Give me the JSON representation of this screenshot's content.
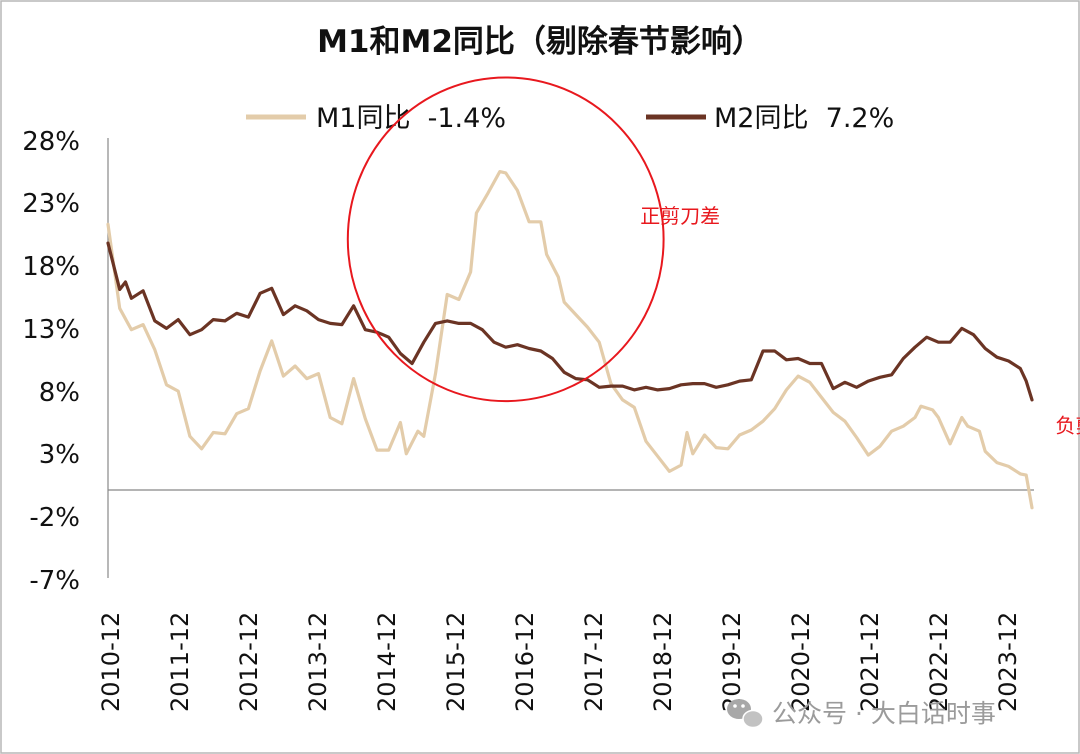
{
  "chart_data": {
    "type": "line",
    "title": "M1和M2同比（剔除春节影响）",
    "x_ticks": [
      "2010-12",
      "2011-12",
      "2012-12",
      "2013-12",
      "2014-12",
      "2015-12",
      "2016-12",
      "2017-12",
      "2018-12",
      "2019-12",
      "2020-12",
      "2021-12",
      "2022-12",
      "2023-12"
    ],
    "y_ticks": [
      "28%",
      "23%",
      "18%",
      "13%",
      "8%",
      "3%",
      "-2%",
      "-7%"
    ],
    "ylim": [
      -7,
      28
    ],
    "xlim": [
      "2010-12",
      "2024-02"
    ],
    "grid": false,
    "legend_position": "top",
    "series": [
      {
        "name": "M1同比",
        "legend_label": "M1同比  -1.4%",
        "color": "#e3ccaa",
        "points": [
          [
            "2010-12",
            21.2
          ],
          [
            "2011-02",
            14.5
          ],
          [
            "2011-04",
            12.8
          ],
          [
            "2011-06",
            13.2
          ],
          [
            "2011-08",
            11.2
          ],
          [
            "2011-10",
            8.4
          ],
          [
            "2011-12",
            7.9
          ],
          [
            "2012-02",
            4.3
          ],
          [
            "2012-04",
            3.3
          ],
          [
            "2012-06",
            4.6
          ],
          [
            "2012-08",
            4.5
          ],
          [
            "2012-10",
            6.1
          ],
          [
            "2012-12",
            6.5
          ],
          [
            "2013-02",
            9.5
          ],
          [
            "2013-04",
            11.9
          ],
          [
            "2013-06",
            9.1
          ],
          [
            "2013-08",
            9.9
          ],
          [
            "2013-10",
            8.9
          ],
          [
            "2013-12",
            9.3
          ],
          [
            "2014-02",
            5.8
          ],
          [
            "2014-04",
            5.3
          ],
          [
            "2014-06",
            8.9
          ],
          [
            "2014-08",
            5.7
          ],
          [
            "2014-10",
            3.2
          ],
          [
            "2014-12",
            3.2
          ],
          [
            "2015-02",
            5.4
          ],
          [
            "2015-03",
            2.9
          ],
          [
            "2015-05",
            4.7
          ],
          [
            "2015-06",
            4.3
          ],
          [
            "2015-08",
            9.3
          ],
          [
            "2015-10",
            15.6
          ],
          [
            "2015-12",
            15.2
          ],
          [
            "2016-02",
            17.4
          ],
          [
            "2016-03",
            22.1
          ],
          [
            "2016-05",
            23.7
          ],
          [
            "2016-07",
            25.4
          ],
          [
            "2016-08",
            25.3
          ],
          [
            "2016-10",
            23.9
          ],
          [
            "2016-12",
            21.4
          ],
          [
            "2017-02",
            21.4
          ],
          [
            "2017-03",
            18.8
          ],
          [
            "2017-05",
            17.0
          ],
          [
            "2017-06",
            15.0
          ],
          [
            "2017-08",
            14.0
          ],
          [
            "2017-10",
            13.0
          ],
          [
            "2017-12",
            11.8
          ],
          [
            "2018-02",
            8.5
          ],
          [
            "2018-04",
            7.2
          ],
          [
            "2018-06",
            6.6
          ],
          [
            "2018-08",
            3.9
          ],
          [
            "2018-10",
            2.7
          ],
          [
            "2018-12",
            1.5
          ],
          [
            "2019-02",
            2.0
          ],
          [
            "2019-03",
            4.6
          ],
          [
            "2019-04",
            2.9
          ],
          [
            "2019-06",
            4.4
          ],
          [
            "2019-08",
            3.4
          ],
          [
            "2019-10",
            3.3
          ],
          [
            "2019-12",
            4.4
          ],
          [
            "2020-02",
            4.8
          ],
          [
            "2020-04",
            5.5
          ],
          [
            "2020-06",
            6.5
          ],
          [
            "2020-08",
            8.0
          ],
          [
            "2020-10",
            9.1
          ],
          [
            "2020-12",
            8.6
          ],
          [
            "2021-02",
            7.4
          ],
          [
            "2021-04",
            6.2
          ],
          [
            "2021-06",
            5.5
          ],
          [
            "2021-08",
            4.2
          ],
          [
            "2021-10",
            2.8
          ],
          [
            "2021-12",
            3.5
          ],
          [
            "2022-02",
            4.7
          ],
          [
            "2022-04",
            5.1
          ],
          [
            "2022-06",
            5.8
          ],
          [
            "2022-07",
            6.7
          ],
          [
            "2022-09",
            6.4
          ],
          [
            "2022-10",
            5.8
          ],
          [
            "2022-12",
            3.7
          ],
          [
            "2023-02",
            5.8
          ],
          [
            "2023-03",
            5.1
          ],
          [
            "2023-05",
            4.7
          ],
          [
            "2023-06",
            3.1
          ],
          [
            "2023-08",
            2.2
          ],
          [
            "2023-10",
            1.9
          ],
          [
            "2023-12",
            1.3
          ],
          [
            "2024-01",
            1.2
          ],
          [
            "2024-02",
            -1.4
          ]
        ]
      },
      {
        "name": "M2同比",
        "legend_label": "M2同比  7.2%",
        "color": "#6b3424",
        "points": [
          [
            "2010-12",
            19.7
          ],
          [
            "2011-02",
            16.0
          ],
          [
            "2011-03",
            16.6
          ],
          [
            "2011-04",
            15.3
          ],
          [
            "2011-06",
            15.9
          ],
          [
            "2011-08",
            13.5
          ],
          [
            "2011-10",
            12.9
          ],
          [
            "2011-12",
            13.6
          ],
          [
            "2012-02",
            12.4
          ],
          [
            "2012-04",
            12.8
          ],
          [
            "2012-06",
            13.6
          ],
          [
            "2012-08",
            13.5
          ],
          [
            "2012-10",
            14.1
          ],
          [
            "2012-12",
            13.8
          ],
          [
            "2013-02",
            15.7
          ],
          [
            "2013-04",
            16.1
          ],
          [
            "2013-06",
            14.0
          ],
          [
            "2013-08",
            14.7
          ],
          [
            "2013-10",
            14.3
          ],
          [
            "2013-12",
            13.6
          ],
          [
            "2014-02",
            13.3
          ],
          [
            "2014-04",
            13.2
          ],
          [
            "2014-06",
            14.7
          ],
          [
            "2014-08",
            12.8
          ],
          [
            "2014-10",
            12.6
          ],
          [
            "2014-12",
            12.2
          ],
          [
            "2015-02",
            10.9
          ],
          [
            "2015-04",
            10.1
          ],
          [
            "2015-06",
            11.8
          ],
          [
            "2015-08",
            13.3
          ],
          [
            "2015-10",
            13.5
          ],
          [
            "2015-12",
            13.3
          ],
          [
            "2016-02",
            13.3
          ],
          [
            "2016-04",
            12.8
          ],
          [
            "2016-06",
            11.8
          ],
          [
            "2016-08",
            11.4
          ],
          [
            "2016-10",
            11.6
          ],
          [
            "2016-12",
            11.3
          ],
          [
            "2017-02",
            11.1
          ],
          [
            "2017-04",
            10.5
          ],
          [
            "2017-06",
            9.4
          ],
          [
            "2017-08",
            8.9
          ],
          [
            "2017-10",
            8.8
          ],
          [
            "2017-12",
            8.2
          ],
          [
            "2018-02",
            8.3
          ],
          [
            "2018-04",
            8.3
          ],
          [
            "2018-06",
            8.0
          ],
          [
            "2018-08",
            8.2
          ],
          [
            "2018-10",
            8.0
          ],
          [
            "2018-12",
            8.1
          ],
          [
            "2019-02",
            8.4
          ],
          [
            "2019-04",
            8.5
          ],
          [
            "2019-06",
            8.5
          ],
          [
            "2019-08",
            8.2
          ],
          [
            "2019-10",
            8.4
          ],
          [
            "2019-12",
            8.7
          ],
          [
            "2020-02",
            8.8
          ],
          [
            "2020-04",
            11.1
          ],
          [
            "2020-06",
            11.1
          ],
          [
            "2020-08",
            10.4
          ],
          [
            "2020-10",
            10.5
          ],
          [
            "2020-12",
            10.1
          ],
          [
            "2021-02",
            10.1
          ],
          [
            "2021-04",
            8.1
          ],
          [
            "2021-06",
            8.6
          ],
          [
            "2021-08",
            8.2
          ],
          [
            "2021-10",
            8.7
          ],
          [
            "2021-12",
            9.0
          ],
          [
            "2022-02",
            9.2
          ],
          [
            "2022-04",
            10.5
          ],
          [
            "2022-06",
            11.4
          ],
          [
            "2022-08",
            12.2
          ],
          [
            "2022-10",
            11.8
          ],
          [
            "2022-12",
            11.8
          ],
          [
            "2023-02",
            12.9
          ],
          [
            "2023-04",
            12.4
          ],
          [
            "2023-06",
            11.3
          ],
          [
            "2023-08",
            10.6
          ],
          [
            "2023-10",
            10.3
          ],
          [
            "2023-12",
            9.7
          ],
          [
            "2024-01",
            8.7
          ],
          [
            "2024-02",
            7.2
          ]
        ]
      }
    ],
    "annotations": [
      {
        "text": "正剪刀差",
        "color": "#e8181e",
        "x": "2018-07",
        "y": 21.3
      },
      {
        "text": "负剪刀差",
        "color": "#e8181e",
        "x": "2024-06",
        "y": 4.6
      }
    ],
    "highlight_circle": {
      "color": "#e8181e",
      "center_x": "2016-08",
      "center_y": 20.0,
      "radius_x_months": 27,
      "radius_y": 12.9
    }
  },
  "watermark": "公众号 · 大白话时事"
}
